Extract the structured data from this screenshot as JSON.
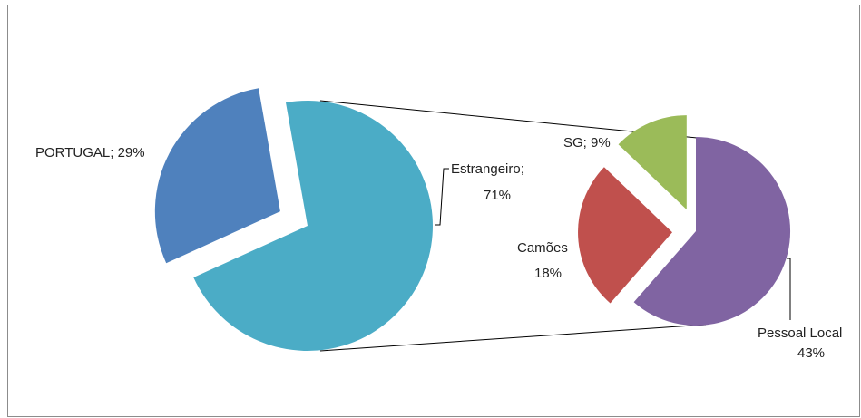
{
  "chart_data": {
    "type": "pie",
    "subtype": "pie-of-pie",
    "colors": {
      "portugal": "#4f81bd",
      "estrangeiro": "#4bacc6",
      "camoes": "#c0504d",
      "sg": "#9bbb59",
      "pessoal_local": "#8064a2",
      "connector": "#000000"
    },
    "primary": {
      "slices": [
        {
          "name": "PORTUGAL",
          "value": 29,
          "label": "PORTUGAL; 29%"
        },
        {
          "name": "Estrangeiro",
          "value": 71,
          "label_line1": "Estrangeiro;",
          "label_line2": "71%"
        }
      ]
    },
    "secondary": {
      "slices": [
        {
          "name": "Pessoal Local",
          "value": 43,
          "label_line1": "Pessoal Local",
          "label_line2": "43%"
        },
        {
          "name": "Camões",
          "value": 18,
          "label_line1": "Camões",
          "label_line2": "18%"
        },
        {
          "name": "SG",
          "value": 9,
          "label": "SG;  9%"
        }
      ]
    }
  }
}
